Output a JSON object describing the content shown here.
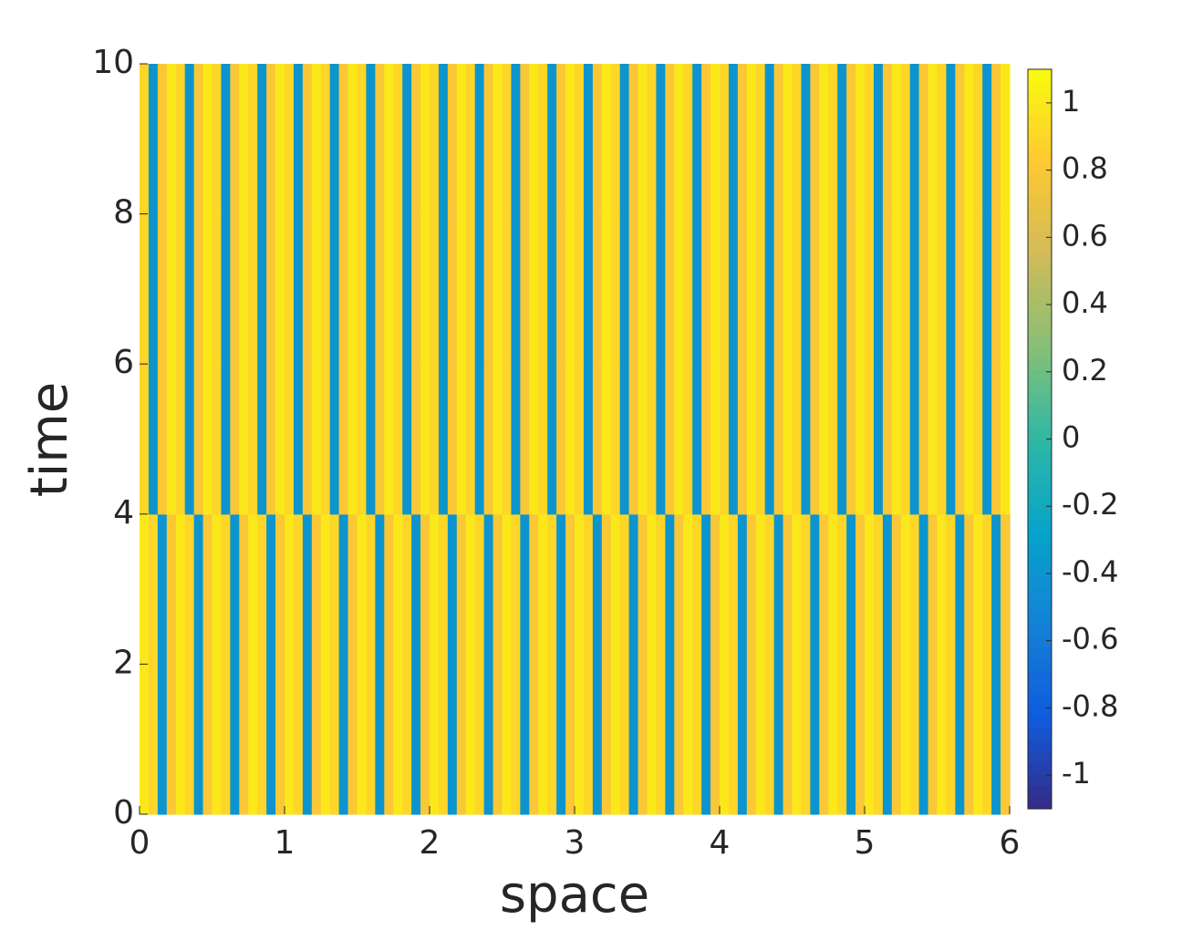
{
  "chart_data": {
    "type": "heatmap",
    "xlabel": "space",
    "ylabel": "time",
    "xlim": [
      0,
      6
    ],
    "ylim": [
      0,
      10
    ],
    "xticks": [
      0,
      1,
      2,
      3,
      4,
      5,
      6
    ],
    "yticks": [
      0,
      2,
      4,
      6,
      8,
      10
    ],
    "z": [
      [
        1,
        0.9,
        -0.4,
        0.8,
        1,
        0.9,
        -0.4,
        0.8,
        1,
        0.9,
        -0.4,
        0.8,
        1,
        0.9,
        -0.4,
        0.8,
        1,
        0.9,
        -0.4,
        0.8,
        1,
        0.9,
        -0.4,
        0.8,
        1,
        0.9,
        -0.4,
        0.8,
        1,
        0.9,
        -0.4,
        0.8,
        1,
        0.9,
        -0.4,
        0.8,
        1,
        0.9,
        -0.4,
        0.8,
        1,
        0.9,
        -0.4,
        0.8,
        1,
        0.9,
        -0.4,
        0.8,
        1,
        0.9,
        -0.4,
        0.8,
        1,
        0.9,
        -0.4,
        0.8,
        1,
        0.9,
        -0.4,
        0.8,
        1,
        0.9,
        -0.4,
        0.8,
        1,
        0.9,
        -0.4,
        0.8,
        1,
        0.9,
        -0.4,
        0.8,
        1,
        0.9,
        -0.4,
        0.8,
        1,
        0.9,
        -0.4,
        0.8,
        1,
        0.9,
        -0.4,
        0.8,
        1,
        0.9,
        -0.4,
        0.8,
        1,
        0.9,
        -0.4,
        0.8,
        1,
        0.9,
        -0.4,
        0.8
      ],
      [
        1,
        0.9,
        -0.4,
        0.8,
        1,
        0.9,
        -0.4,
        0.8,
        1,
        0.9,
        -0.4,
        0.8,
        1,
        0.9,
        -0.4,
        0.8,
        1,
        0.9,
        -0.4,
        0.8,
        1,
        0.9,
        -0.4,
        0.8,
        1,
        0.9,
        -0.4,
        0.8,
        1,
        0.9,
        -0.4,
        0.8,
        1,
        0.9,
        -0.4,
        0.8,
        1,
        0.9,
        -0.4,
        0.8,
        1,
        0.9,
        -0.4,
        0.8,
        1,
        0.9,
        -0.4,
        0.8,
        1,
        0.9,
        -0.4,
        0.8,
        1,
        0.9,
        -0.4,
        0.8,
        1,
        0.9,
        -0.4,
        0.8,
        1,
        0.9,
        -0.4,
        0.8,
        1,
        0.9,
        -0.4,
        0.8,
        1,
        0.9,
        -0.4,
        0.8,
        1,
        0.9,
        -0.4,
        0.8,
        1,
        0.9,
        -0.4,
        0.8,
        1,
        0.9,
        -0.4,
        0.8,
        1,
        0.9,
        -0.4,
        0.8,
        1,
        0.9,
        -0.4,
        0.8,
        1,
        0.9,
        -0.4,
        0.8
      ],
      [
        0.9,
        -0.4,
        0.8,
        1,
        0.9,
        -0.4,
        0.8,
        1,
        0.9,
        -0.4,
        0.8,
        1,
        0.9,
        -0.4,
        0.8,
        1,
        0.9,
        -0.4,
        0.8,
        1,
        0.9,
        -0.4,
        0.8,
        1,
        0.9,
        -0.4,
        0.8,
        1,
        0.9,
        -0.4,
        0.8,
        1,
        0.9,
        -0.4,
        0.8,
        1,
        0.9,
        -0.4,
        0.8,
        1,
        0.9,
        -0.4,
        0.8,
        1,
        0.9,
        -0.4,
        0.8,
        1,
        0.9,
        -0.4,
        0.8,
        1,
        0.9,
        -0.4,
        0.8,
        1,
        0.9,
        -0.4,
        0.8,
        1,
        0.9,
        -0.4,
        0.8,
        1,
        0.9,
        -0.4,
        0.8,
        1,
        0.9,
        -0.4,
        0.8,
        1,
        0.9,
        -0.4,
        0.8,
        1,
        0.9,
        -0.4,
        0.8,
        1,
        0.9,
        -0.4,
        0.8,
        1,
        0.9,
        -0.4,
        0.8,
        1,
        0.9,
        -0.4,
        0.8,
        1,
        0.9,
        -0.4,
        0.8,
        1
      ],
      [
        0.9,
        -0.4,
        0.8,
        1,
        0.9,
        -0.4,
        0.8,
        1,
        0.9,
        -0.4,
        0.8,
        1,
        0.9,
        -0.4,
        0.8,
        1,
        0.9,
        -0.4,
        0.8,
        1,
        0.9,
        -0.4,
        0.8,
        1,
        0.9,
        -0.4,
        0.8,
        1,
        0.9,
        -0.4,
        0.8,
        1,
        0.9,
        -0.4,
        0.8,
        1,
        0.9,
        -0.4,
        0.8,
        1,
        0.9,
        -0.4,
        0.8,
        1,
        0.9,
        -0.4,
        0.8,
        1,
        0.9,
        -0.4,
        0.8,
        1,
        0.9,
        -0.4,
        0.8,
        1,
        0.9,
        -0.4,
        0.8,
        1,
        0.9,
        -0.4,
        0.8,
        1,
        0.9,
        -0.4,
        0.8,
        1,
        0.9,
        -0.4,
        0.8,
        1,
        0.9,
        -0.4,
        0.8,
        1,
        0.9,
        -0.4,
        0.8,
        1,
        0.9,
        -0.4,
        0.8,
        1,
        0.9,
        -0.4,
        0.8,
        1,
        0.9,
        -0.4,
        0.8,
        1,
        0.9,
        -0.4,
        0.8,
        1
      ],
      [
        0.9,
        -0.4,
        0.8,
        1,
        0.9,
        -0.4,
        0.8,
        1,
        0.9,
        -0.4,
        0.8,
        1,
        0.9,
        -0.4,
        0.8,
        1,
        0.9,
        -0.4,
        0.8,
        1,
        0.9,
        -0.4,
        0.8,
        1,
        0.9,
        -0.4,
        0.8,
        1,
        0.9,
        -0.4,
        0.8,
        1,
        0.9,
        -0.4,
        0.8,
        1,
        0.9,
        -0.4,
        0.8,
        1,
        0.9,
        -0.4,
        0.8,
        1,
        0.9,
        -0.4,
        0.8,
        1,
        0.9,
        -0.4,
        0.8,
        1,
        0.9,
        -0.4,
        0.8,
        1,
        0.9,
        -0.4,
        0.8,
        1,
        0.9,
        -0.4,
        0.8,
        1,
        0.9,
        -0.4,
        0.8,
        1,
        0.9,
        -0.4,
        0.8,
        1,
        0.9,
        -0.4,
        0.8,
        1,
        0.9,
        -0.4,
        0.8,
        1,
        0.9,
        -0.4,
        0.8,
        1,
        0.9,
        -0.4,
        0.8,
        1,
        0.9,
        -0.4,
        0.8,
        1,
        0.9,
        -0.4,
        0.8,
        1
      ]
    ],
    "clim": [
      -1.1,
      1.1
    ],
    "cticks": [
      -1,
      -0.8,
      -0.6,
      -0.4,
      -0.2,
      0,
      0.2,
      0.4,
      0.6,
      0.8,
      1
    ],
    "colormap": [
      "#352a87",
      "#0f5cdd",
      "#1481d6",
      "#06a4ca",
      "#2eb7a4",
      "#87bf77",
      "#d1bb59",
      "#fec832",
      "#f9fb0e"
    ]
  }
}
